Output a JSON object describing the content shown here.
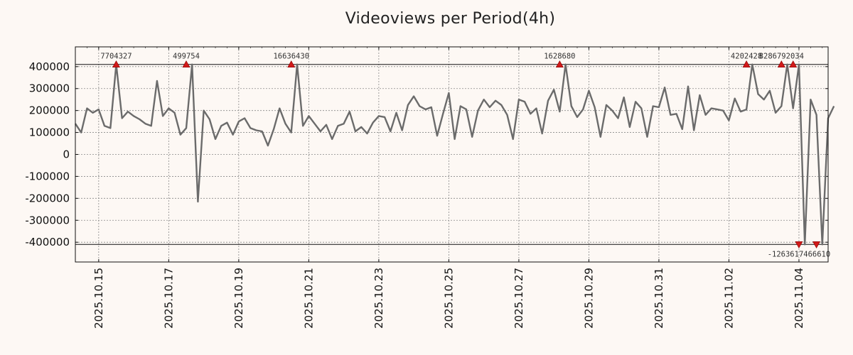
{
  "chart_data": {
    "type": "line",
    "title": "Videoviews per Period(4h)",
    "xlabel": "",
    "ylabel": "",
    "ylim": [
      -490000,
      490000
    ],
    "grid": true,
    "y_ticks": [
      400000,
      300000,
      200000,
      100000,
      0,
      -100000,
      -200000,
      -300000,
      -400000
    ],
    "y_tick_labels": [
      "400000",
      "300000",
      "200000",
      "100000",
      "0",
      "-100000",
      "-200000",
      "-300000",
      "-400000"
    ],
    "x_range": [
      0,
      129
    ],
    "x_ticks": [
      {
        "x": 4,
        "label": "2025.10.15"
      },
      {
        "x": 16,
        "label": "2025.10.17"
      },
      {
        "x": 28,
        "label": "2025.10.19"
      },
      {
        "x": 40,
        "label": "2025.10.21"
      },
      {
        "x": 52,
        "label": "2025.10.23"
      },
      {
        "x": 64,
        "label": "2025.10.25"
      },
      {
        "x": 76,
        "label": "2025.10.27"
      },
      {
        "x": 88,
        "label": "2025.10.29"
      },
      {
        "x": 100,
        "label": "2025.10.31"
      },
      {
        "x": 112,
        "label": "2025.11.02"
      },
      {
        "x": 124,
        "label": "2025.11.04"
      }
    ],
    "clip_lines": [
      410000,
      -410000
    ],
    "series": [
      {
        "name": "Videoviews",
        "color": "#6b6b6b",
        "values": [
          140000,
          100000,
          210000,
          190000,
          205000,
          130000,
          120000,
          410000,
          165000,
          195000,
          175000,
          160000,
          140000,
          130000,
          335000,
          175000,
          210000,
          190000,
          90000,
          120000,
          410000,
          -215000,
          200000,
          160000,
          70000,
          130000,
          145000,
          90000,
          150000,
          165000,
          120000,
          110000,
          105000,
          40000,
          115000,
          210000,
          140000,
          100000,
          410000,
          130000,
          175000,
          140000,
          105000,
          135000,
          70000,
          130000,
          140000,
          195000,
          105000,
          125000,
          95000,
          145000,
          175000,
          170000,
          105000,
          190000,
          110000,
          225000,
          265000,
          220000,
          205000,
          215000,
          85000,
          185000,
          280000,
          70000,
          220000,
          205000,
          80000,
          200000,
          250000,
          215000,
          245000,
          225000,
          180000,
          70000,
          250000,
          240000,
          185000,
          210000,
          95000,
          245000,
          295000,
          195000,
          410000,
          220000,
          170000,
          205000,
          290000,
          215000,
          80000,
          225000,
          200000,
          165000,
          260000,
          125000,
          240000,
          210000,
          80000,
          220000,
          215000,
          305000,
          180000,
          185000,
          115000,
          310000,
          110000,
          270000,
          180000,
          210000,
          205000,
          200000,
          155000,
          255000,
          195000,
          205000,
          410000,
          275000,
          250000,
          290000,
          190000,
          220000,
          410000,
          210000,
          410000,
          -410000,
          250000,
          180000,
          -410000,
          165000,
          220000
        ]
      }
    ],
    "annotations": [
      {
        "x": 7,
        "text": "7704327",
        "direction": "up"
      },
      {
        "x": 19,
        "text": "499754",
        "direction": "up"
      },
      {
        "x": 37,
        "text": "16636430",
        "direction": "up"
      },
      {
        "x": 83,
        "text": "1628680",
        "direction": "up"
      },
      {
        "x": 115,
        "text": "4202428",
        "direction": "up"
      },
      {
        "x": 121,
        "text": "8286792034",
        "direction": "up"
      },
      {
        "x": 123,
        "text": "",
        "direction": "up"
      },
      {
        "x": 124,
        "text": "-1263617466610",
        "direction": "down"
      },
      {
        "x": 127,
        "text": "",
        "direction": "down"
      }
    ]
  }
}
